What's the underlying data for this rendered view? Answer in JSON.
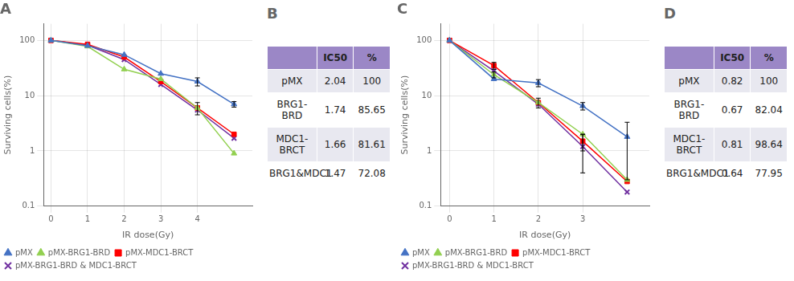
{
  "chart_data": [
    {
      "type": "line",
      "title": "A",
      "xlabel": "IR dose(Gy)",
      "ylabel": "Surviving cells(%)",
      "x": [
        0,
        1,
        2,
        3,
        4,
        5
      ],
      "series": [
        {
          "name": "pMX",
          "color": "#4472C4",
          "marker": "triangle",
          "values": [
            100,
            80,
            55,
            25,
            18,
            7
          ],
          "yerr": [
            0,
            0,
            0,
            0,
            3,
            0.8
          ]
        },
        {
          "name": "pMX-BRG1-BRD",
          "color": "#92D050",
          "marker": "triangle",
          "values": [
            100,
            78,
            30,
            20,
            6,
            0.9
          ],
          "yerr": [
            0,
            0,
            0,
            0,
            0,
            0
          ]
        },
        {
          "name": "pMX-MDC1-BRCT",
          "color": "#FF0000",
          "marker": "square",
          "values": [
            100,
            85,
            50,
            18,
            6,
            2.0
          ],
          "yerr": [
            0,
            0,
            0,
            0,
            1.5,
            0
          ]
        },
        {
          "name": "pMX-BRG1-BRD & MDC1-BRCT",
          "color": "#7030A0",
          "marker": "x",
          "values": [
            100,
            82,
            45,
            16,
            5.5,
            1.7
          ],
          "yerr": [
            0,
            0,
            0,
            0,
            0,
            0
          ]
        }
      ],
      "xlim": [
        -0.2,
        5.5
      ],
      "xticks": [
        0,
        1,
        2,
        3,
        4
      ],
      "ylim": [
        0.1,
        200
      ],
      "yticks": [
        0.1,
        1,
        10,
        100
      ],
      "log": "y",
      "grid": true,
      "legend": "lower left"
    },
    {
      "type": "table",
      "title": "B",
      "color": "#9B87C6",
      "categories": [
        "pMX",
        "BRG1-BRD",
        "MDC1-BRCT",
        "BRG1&MDC1"
      ],
      "series": [
        {
          "name": "IC50",
          "values": [
            2.04,
            1.74,
            1.66,
            1.47
          ]
        },
        {
          "name": "%",
          "values": [
            100,
            85.65,
            81.61,
            72.08
          ]
        }
      ]
    },
    {
      "type": "line",
      "title": "C",
      "xlabel": "IR dose(Gy)",
      "ylabel": "Surviving cells(%)",
      "x": [
        0,
        1,
        2,
        3,
        4
      ],
      "series": [
        {
          "name": "pMX",
          "color": "#4472C4",
          "marker": "triangle",
          "values": [
            100,
            20,
            17,
            6.5,
            1.8
          ],
          "yerr": [
            0,
            0,
            2.5,
            1.0,
            1.5
          ]
        },
        {
          "name": "pMX-BRG1-BRD",
          "color": "#92D050",
          "marker": "triangle",
          "values": [
            100,
            24,
            7.5,
            2.0,
            0.3
          ],
          "yerr": [
            0,
            3,
            0,
            0,
            0
          ]
        },
        {
          "name": "pMX-MDC1-BRCT",
          "color": "#FF0000",
          "marker": "square",
          "values": [
            100,
            35,
            7.5,
            1.5,
            0.28
          ],
          "yerr": [
            0,
            5,
            1.5,
            0.5,
            0
          ]
        },
        {
          "name": "pMX-BRG1-BRD & MDC1-BRCT",
          "color": "#7030A0",
          "marker": "x",
          "values": [
            100,
            28,
            7.0,
            1.2,
            0.18
          ],
          "yerr": [
            0,
            0,
            0,
            0.8,
            0
          ]
        }
      ],
      "xlim": [
        -0.2,
        4.5
      ],
      "xticks": [
        0,
        1,
        2,
        3
      ],
      "ylim": [
        0.1,
        200
      ],
      "yticks": [
        0.1,
        1,
        10,
        100
      ],
      "log": "y",
      "grid": true,
      "legend": "lower left"
    },
    {
      "type": "table",
      "title": "D",
      "color": "#9B87C6",
      "categories": [
        "pMX",
        "BRG1-BRD",
        "MDC1-BRCT",
        "BRG1&MDC1"
      ],
      "series": [
        {
          "name": "IC50",
          "values": [
            0.82,
            0.67,
            0.81,
            0.64
          ]
        },
        {
          "name": "%",
          "values": [
            100,
            82.04,
            98.64,
            77.95
          ]
        }
      ]
    }
  ]
}
